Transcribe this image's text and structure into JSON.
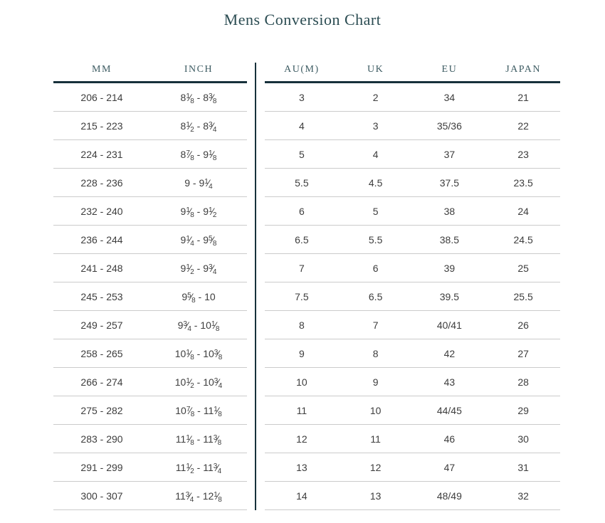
{
  "title": "Mens Conversion Chart",
  "colors": {
    "accent_dark": "#17313b",
    "title_text": "#2b4c52",
    "header_text": "#3e5c63",
    "body_text": "#3d3d3d",
    "row_divider": "#cbcbcb"
  },
  "table": {
    "left_headers": [
      "MM",
      "INCH"
    ],
    "right_headers": [
      "AU(M)",
      "UK",
      "EU",
      "JAPAN"
    ],
    "rows": [
      {
        "mm": "206 - 214",
        "inch": "8 1/8 - 8 3/8",
        "au": "3",
        "uk": "2",
        "eu": "34",
        "japan": "21"
      },
      {
        "mm": "215 - 223",
        "inch": "8 1/2 - 8 3/4",
        "au": "4",
        "uk": "3",
        "eu": "35/36",
        "japan": "22"
      },
      {
        "mm": "224 - 231",
        "inch": "8 7/8 - 9 1/8",
        "au": "5",
        "uk": "4",
        "eu": "37",
        "japan": "23"
      },
      {
        "mm": "228 - 236",
        "inch": "9 - 9 1/4",
        "au": "5.5",
        "uk": "4.5",
        "eu": "37.5",
        "japan": "23.5"
      },
      {
        "mm": "232 - 240",
        "inch": "9 1/8 - 9 1/2",
        "au": "6",
        "uk": "5",
        "eu": "38",
        "japan": "24"
      },
      {
        "mm": "236 - 244",
        "inch": "9 1/4 - 9 5/8",
        "au": "6.5",
        "uk": "5.5",
        "eu": "38.5",
        "japan": "24.5"
      },
      {
        "mm": "241 - 248",
        "inch": "9 1/2 - 9 3/4",
        "au": "7",
        "uk": "6",
        "eu": "39",
        "japan": "25"
      },
      {
        "mm": "245 - 253",
        "inch": "9 5/8 - 10",
        "au": "7.5",
        "uk": "6.5",
        "eu": "39.5",
        "japan": "25.5"
      },
      {
        "mm": "249 - 257",
        "inch": "9 3/4 - 10 1/8",
        "au": "8",
        "uk": "7",
        "eu": "40/41",
        "japan": "26"
      },
      {
        "mm": "258 - 265",
        "inch": "10 1/8 - 10 3/8",
        "au": "9",
        "uk": "8",
        "eu": "42",
        "japan": "27"
      },
      {
        "mm": "266 - 274",
        "inch": "10 1/2 - 10 3/4",
        "au": "10",
        "uk": "9",
        "eu": "43",
        "japan": "28"
      },
      {
        "mm": "275 - 282",
        "inch": "10 7/8 - 11 1/8",
        "au": "11",
        "uk": "10",
        "eu": "44/45",
        "japan": "29"
      },
      {
        "mm": "283 - 290",
        "inch": "11 1/8 - 11 3/8",
        "au": "12",
        "uk": "11",
        "eu": "46",
        "japan": "30"
      },
      {
        "mm": "291 - 299",
        "inch": "11 1/2 - 11 3/4",
        "au": "13",
        "uk": "12",
        "eu": "47",
        "japan": "31"
      },
      {
        "mm": "300 - 307",
        "inch": "11 3/4 - 12 1/8",
        "au": "14",
        "uk": "13",
        "eu": "48/49",
        "japan": "32"
      }
    ]
  }
}
